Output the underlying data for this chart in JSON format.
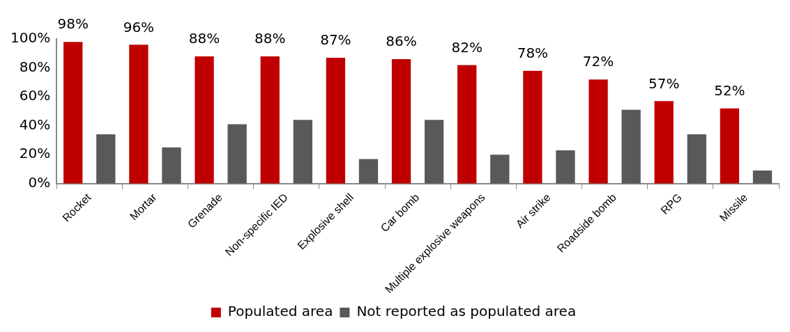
{
  "chart_data": {
    "type": "bar",
    "categories": [
      "Rocket",
      "Mortar",
      "Grenade",
      "Non-specific IED",
      "Explosive shell",
      "Car bomb",
      "Multiple explosive weapons",
      "Air strike",
      "Roadside bomb",
      "RPG",
      "Missile"
    ],
    "series": [
      {
        "name": "Populated area",
        "color": "#c00000",
        "values": [
          98,
          96,
          88,
          88,
          87,
          86,
          82,
          78,
          72,
          57,
          52
        ],
        "value_labels": [
          "98%",
          "96%",
          "88%",
          "88%",
          "87%",
          "86%",
          "82%",
          "78%",
          "72%",
          "57%",
          "52%"
        ]
      },
      {
        "name": "Not reported as populated area",
        "color": "#595959",
        "values": [
          34,
          25,
          41,
          44,
          17,
          44,
          20,
          23,
          51,
          34,
          9
        ]
      }
    ],
    "ylim": [
      0,
      100
    ],
    "yticks": [
      {
        "value": 0,
        "label": "0%"
      },
      {
        "value": 20,
        "label": "20%"
      },
      {
        "value": 40,
        "label": "40%"
      },
      {
        "value": 60,
        "label": "60%"
      },
      {
        "value": 80,
        "label": "80%"
      },
      {
        "value": 100,
        "label": "100%"
      }
    ],
    "grid": false,
    "legend": "bottom"
  }
}
